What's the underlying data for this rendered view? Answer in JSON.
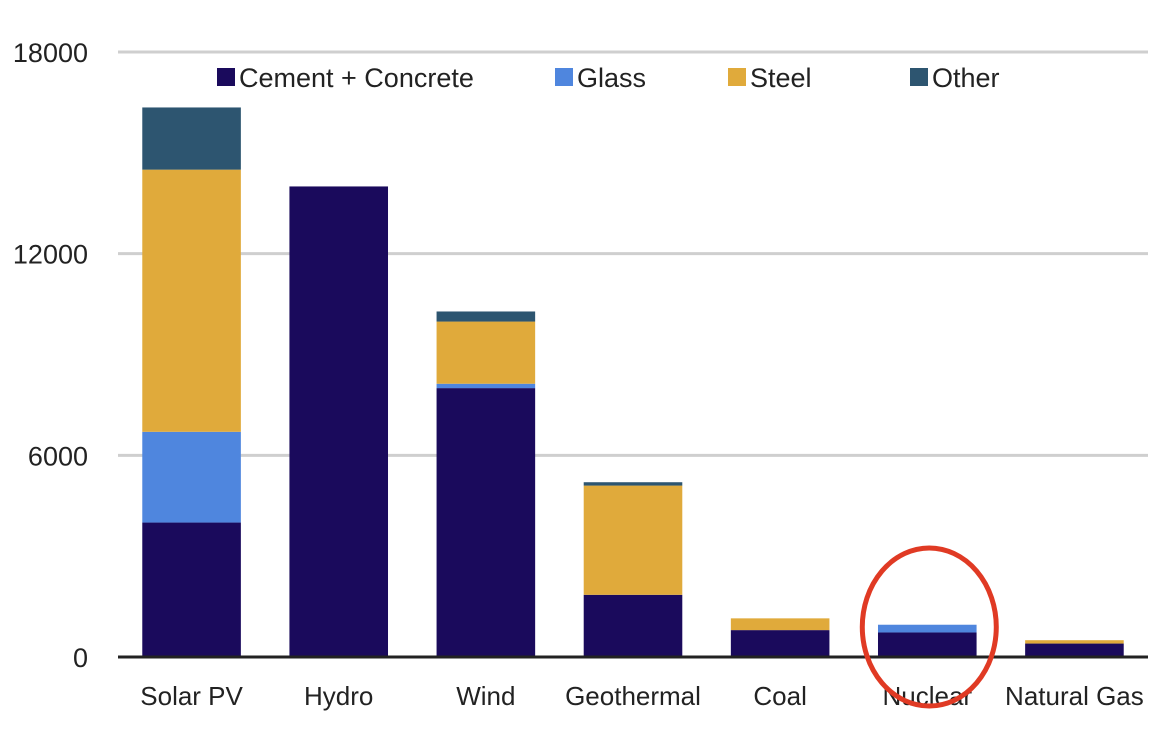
{
  "chart_data": {
    "type": "bar",
    "stacked": true,
    "categories": [
      "Solar PV",
      "Hydro",
      "Wind",
      "Geothermal",
      "Coal",
      "Nuclear",
      "Natural Gas"
    ],
    "series": [
      {
        "name": "Cement + Concrete",
        "color": "#1a0a5c",
        "values": [
          4000,
          14000,
          8000,
          1850,
          800,
          730,
          400
        ]
      },
      {
        "name": "Glass",
        "color": "#4f86de",
        "values": [
          2700,
          0,
          130,
          0,
          0,
          230,
          0
        ]
      },
      {
        "name": "Steel",
        "color": "#e0aa3b",
        "values": [
          7800,
          0,
          1850,
          3250,
          350,
          0,
          100
        ]
      },
      {
        "name": "Other",
        "color": "#2d5570",
        "values": [
          1850,
          0,
          300,
          100,
          0,
          0,
          0
        ]
      }
    ],
    "y_ticks": [
      "0",
      "6000",
      "12000",
      "18000"
    ],
    "ylim": [
      0,
      18000
    ],
    "grid": true,
    "legend_position": "top",
    "title": "",
    "xlabel": "",
    "ylabel": "",
    "highlight": {
      "category": "Nuclear",
      "shape": "ellipse",
      "color": "#e03a24"
    }
  }
}
